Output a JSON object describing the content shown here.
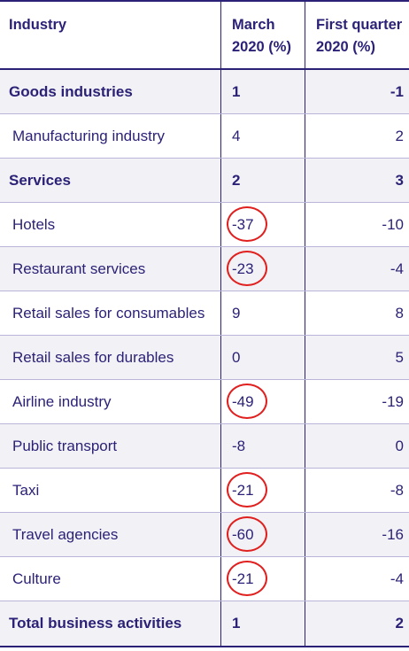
{
  "header": {
    "industry": "Industry",
    "march_line1": "March",
    "march_line2": "2020 (%)",
    "q1_line1": "First quarter",
    "q1_line2": "2020 (%)"
  },
  "rows": [
    {
      "industry": "Goods industries",
      "march": "1",
      "q1": "-1",
      "bold": true,
      "shaded": true,
      "circled": false
    },
    {
      "industry": "Manufacturing industry",
      "march": "4",
      "q1": "2",
      "bold": false,
      "shaded": false,
      "circled": false
    },
    {
      "industry": "Services",
      "march": "2",
      "q1": "3",
      "bold": true,
      "shaded": true,
      "circled": false
    },
    {
      "industry": "Hotels",
      "march": "-37",
      "q1": "-10",
      "bold": false,
      "shaded": false,
      "circled": true
    },
    {
      "industry": "Restaurant services",
      "march": "-23",
      "q1": "-4",
      "bold": false,
      "shaded": true,
      "circled": true
    },
    {
      "industry": "Retail sales for consumables",
      "march": "9",
      "q1": "8",
      "bold": false,
      "shaded": false,
      "circled": false
    },
    {
      "industry": "Retail sales for durables",
      "march": "0",
      "q1": "5",
      "bold": false,
      "shaded": true,
      "circled": false
    },
    {
      "industry": "Airline industry",
      "march": "-49",
      "q1": "-19",
      "bold": false,
      "shaded": false,
      "circled": true
    },
    {
      "industry": "Public transport",
      "march": "-8",
      "q1": "0",
      "bold": false,
      "shaded": true,
      "circled": false
    },
    {
      "industry": "Taxi",
      "march": "-21",
      "q1": "-8",
      "bold": false,
      "shaded": false,
      "circled": true
    },
    {
      "industry": "Travel agencies",
      "march": "-60",
      "q1": "-16",
      "bold": false,
      "shaded": true,
      "circled": true
    },
    {
      "industry": "Culture",
      "march": "-21",
      "q1": "-4",
      "bold": false,
      "shaded": false,
      "circled": true
    },
    {
      "industry": "Total business activities",
      "march": "1",
      "q1": "2",
      "bold": true,
      "shaded": true,
      "circled": false
    }
  ],
  "colors": {
    "text": "#2b2277",
    "border": "#2b2277",
    "row_divider": "#b9b5d8",
    "shaded_row": "#f2f2f6",
    "annotation_circle": "#e0201e"
  }
}
